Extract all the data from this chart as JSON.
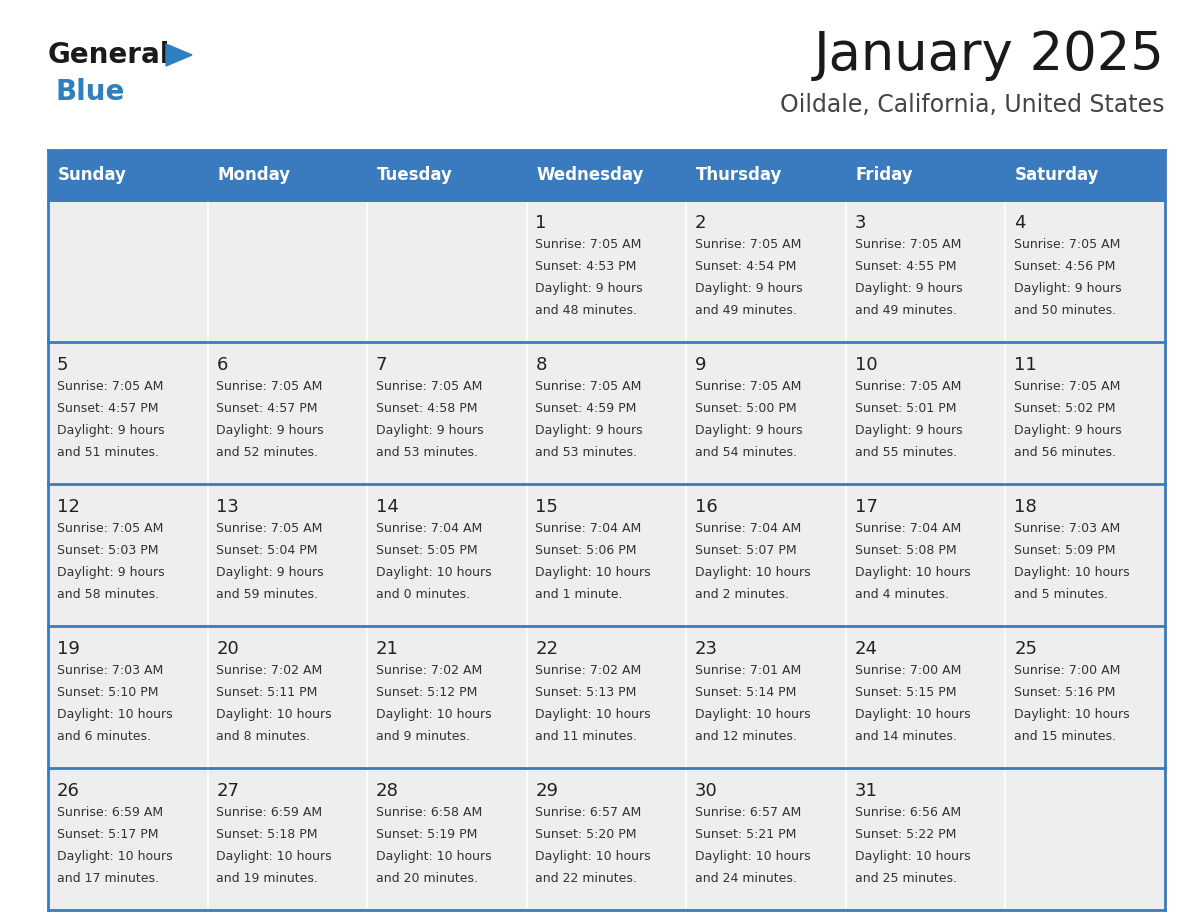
{
  "title": "January 2025",
  "subtitle": "Oildale, California, United States",
  "days_of_week": [
    "Sunday",
    "Monday",
    "Tuesday",
    "Wednesday",
    "Thursday",
    "Friday",
    "Saturday"
  ],
  "header_bg": "#3a7abf",
  "header_text_color": "#ffffff",
  "cell_bg_light": "#eeeeee",
  "border_color": "#3a7abf",
  "cell_text_color": "#333333",
  "calendar": [
    [
      {
        "day": null,
        "sunrise": null,
        "sunset": null,
        "daylight": null
      },
      {
        "day": null,
        "sunrise": null,
        "sunset": null,
        "daylight": null
      },
      {
        "day": null,
        "sunrise": null,
        "sunset": null,
        "daylight": null
      },
      {
        "day": 1,
        "sunrise": "7:05 AM",
        "sunset": "4:53 PM",
        "daylight": "9 hours and 48 minutes."
      },
      {
        "day": 2,
        "sunrise": "7:05 AM",
        "sunset": "4:54 PM",
        "daylight": "9 hours and 49 minutes."
      },
      {
        "day": 3,
        "sunrise": "7:05 AM",
        "sunset": "4:55 PM",
        "daylight": "9 hours and 49 minutes."
      },
      {
        "day": 4,
        "sunrise": "7:05 AM",
        "sunset": "4:56 PM",
        "daylight": "9 hours and 50 minutes."
      }
    ],
    [
      {
        "day": 5,
        "sunrise": "7:05 AM",
        "sunset": "4:57 PM",
        "daylight": "9 hours and 51 minutes."
      },
      {
        "day": 6,
        "sunrise": "7:05 AM",
        "sunset": "4:57 PM",
        "daylight": "9 hours and 52 minutes."
      },
      {
        "day": 7,
        "sunrise": "7:05 AM",
        "sunset": "4:58 PM",
        "daylight": "9 hours and 53 minutes."
      },
      {
        "day": 8,
        "sunrise": "7:05 AM",
        "sunset": "4:59 PM",
        "daylight": "9 hours and 53 minutes."
      },
      {
        "day": 9,
        "sunrise": "7:05 AM",
        "sunset": "5:00 PM",
        "daylight": "9 hours and 54 minutes."
      },
      {
        "day": 10,
        "sunrise": "7:05 AM",
        "sunset": "5:01 PM",
        "daylight": "9 hours and 55 minutes."
      },
      {
        "day": 11,
        "sunrise": "7:05 AM",
        "sunset": "5:02 PM",
        "daylight": "9 hours and 56 minutes."
      }
    ],
    [
      {
        "day": 12,
        "sunrise": "7:05 AM",
        "sunset": "5:03 PM",
        "daylight": "9 hours and 58 minutes."
      },
      {
        "day": 13,
        "sunrise": "7:05 AM",
        "sunset": "5:04 PM",
        "daylight": "9 hours and 59 minutes."
      },
      {
        "day": 14,
        "sunrise": "7:04 AM",
        "sunset": "5:05 PM",
        "daylight": "10 hours and 0 minutes."
      },
      {
        "day": 15,
        "sunrise": "7:04 AM",
        "sunset": "5:06 PM",
        "daylight": "10 hours and 1 minute."
      },
      {
        "day": 16,
        "sunrise": "7:04 AM",
        "sunset": "5:07 PM",
        "daylight": "10 hours and 2 minutes."
      },
      {
        "day": 17,
        "sunrise": "7:04 AM",
        "sunset": "5:08 PM",
        "daylight": "10 hours and 4 minutes."
      },
      {
        "day": 18,
        "sunrise": "7:03 AM",
        "sunset": "5:09 PM",
        "daylight": "10 hours and 5 minutes."
      }
    ],
    [
      {
        "day": 19,
        "sunrise": "7:03 AM",
        "sunset": "5:10 PM",
        "daylight": "10 hours and 6 minutes."
      },
      {
        "day": 20,
        "sunrise": "7:02 AM",
        "sunset": "5:11 PM",
        "daylight": "10 hours and 8 minutes."
      },
      {
        "day": 21,
        "sunrise": "7:02 AM",
        "sunset": "5:12 PM",
        "daylight": "10 hours and 9 minutes."
      },
      {
        "day": 22,
        "sunrise": "7:02 AM",
        "sunset": "5:13 PM",
        "daylight": "10 hours and 11 minutes."
      },
      {
        "day": 23,
        "sunrise": "7:01 AM",
        "sunset": "5:14 PM",
        "daylight": "10 hours and 12 minutes."
      },
      {
        "day": 24,
        "sunrise": "7:00 AM",
        "sunset": "5:15 PM",
        "daylight": "10 hours and 14 minutes."
      },
      {
        "day": 25,
        "sunrise": "7:00 AM",
        "sunset": "5:16 PM",
        "daylight": "10 hours and 15 minutes."
      }
    ],
    [
      {
        "day": 26,
        "sunrise": "6:59 AM",
        "sunset": "5:17 PM",
        "daylight": "10 hours and 17 minutes."
      },
      {
        "day": 27,
        "sunrise": "6:59 AM",
        "sunset": "5:18 PM",
        "daylight": "10 hours and 19 minutes."
      },
      {
        "day": 28,
        "sunrise": "6:58 AM",
        "sunset": "5:19 PM",
        "daylight": "10 hours and 20 minutes."
      },
      {
        "day": 29,
        "sunrise": "6:57 AM",
        "sunset": "5:20 PM",
        "daylight": "10 hours and 22 minutes."
      },
      {
        "day": 30,
        "sunrise": "6:57 AM",
        "sunset": "5:21 PM",
        "daylight": "10 hours and 24 minutes."
      },
      {
        "day": 31,
        "sunrise": "6:56 AM",
        "sunset": "5:22 PM",
        "daylight": "10 hours and 25 minutes."
      },
      {
        "day": null,
        "sunrise": null,
        "sunset": null,
        "daylight": null
      }
    ]
  ],
  "logo_general_color": "#1a1a1a",
  "logo_blue_color": "#2e7fc1",
  "title_color": "#1a1a1a",
  "subtitle_color": "#444444"
}
